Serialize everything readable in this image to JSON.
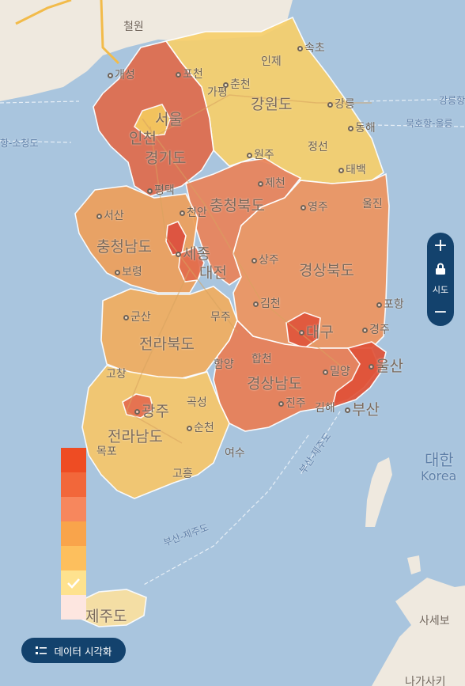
{
  "map_labels": {
    "cheorwon": "철원",
    "gaeseong": "개성",
    "pocheon": "포천",
    "gapyeong": "가평",
    "inje": "인제",
    "sokcho": "속초",
    "chuncheon": "춘천",
    "gangwon": "강원도",
    "gangneung": "강릉",
    "donghae": "동해",
    "jeongseon": "정선",
    "taebaek": "태백",
    "seoul": "서울",
    "incheon": "인천",
    "gyeonggi": "경기도",
    "wonju": "원주",
    "jecheon": "제천",
    "pyeongtaek": "평택",
    "chungbuk": "충청북도",
    "yeongju": "영주",
    "uljin": "울진",
    "seosan": "서산",
    "cheonan": "천안",
    "chungnam": "충청남도",
    "sejong": "세종",
    "daejeon": "대전",
    "boryeong": "보령",
    "sangju": "상주",
    "gyeongbuk": "경상북도",
    "pohang": "포항",
    "gimcheon": "김천",
    "daegu": "대구",
    "gyeongju": "경주",
    "gunsan": "군산",
    "muju": "무주",
    "jeonbuk": "전라북도",
    "hamyang": "함양",
    "hapcheon": "합천",
    "miryang": "밀양",
    "ulsan": "울산",
    "gochang": "고창",
    "gyeongnam": "경상남도",
    "jinju": "진주",
    "busan": "부산",
    "gwangju": "광주",
    "gokseong": "곡성",
    "jeonnam": "전라남도",
    "suncheon": "순천",
    "mokpo": "목포",
    "yeosu": "여수",
    "goheung": "고흥",
    "jejudo": "제주도",
    "sasebo": "사세보",
    "daehan": "대한",
    "korea": "Korea",
    "nagasaki": "나가사키",
    "gimhae": "김해"
  },
  "sea_labels": {
    "gangneung_ulleung": "강릉항",
    "mukho_ulleung": "묵호항-울릉",
    "hang_sojeongdo": "항-소청도",
    "busan_jejudo": "부산-제주도",
    "busan_jeju2": "부산-제주도"
  },
  "zoom_control": {
    "zoom_in": "+",
    "level_label": "시도",
    "zoom_out": "−"
  },
  "legend": {
    "colors": [
      "#ee4c23",
      "#f2673a",
      "#f7875d",
      "#f9a44b",
      "#fdbf5d",
      "#fee28e",
      "#fde6e0"
    ],
    "selected_index": 5
  },
  "data_viz_button": {
    "label": "데이터 시각화",
    "icon": "list-toggle-icon"
  },
  "region_colors": {
    "gyeonggi": "#e06b4c",
    "seoul": "#f5c95e",
    "gangwon": "#f7cf6c",
    "chungbuk": "#e9835a",
    "chungnam": "#eea05b",
    "sejong": "#dd4f3e",
    "daejeon": "#e36c4d",
    "gyeongbuk": "#ee9560",
    "daegu": "#e0553c",
    "jeonbuk": "#f1ae60",
    "jeonnam": "#f7c76b",
    "gwangju": "#e56d4f",
    "gyeongnam": "#ea7e55",
    "busan_ulsan": "#e05238",
    "jeju": "#fbe1a0"
  }
}
